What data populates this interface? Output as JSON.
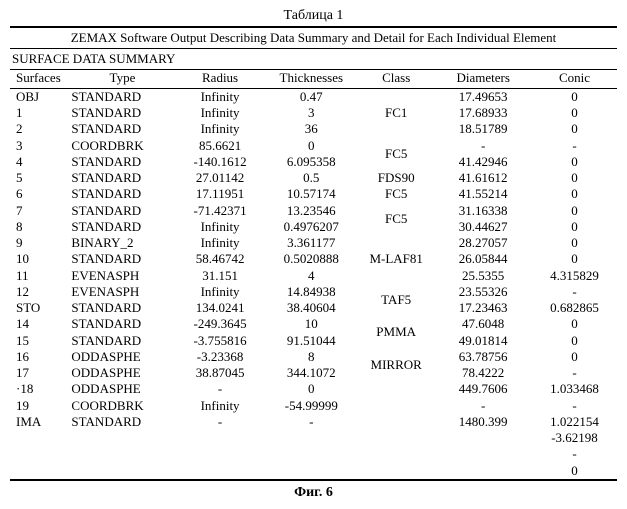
{
  "caption": "Таблица 1",
  "title": "ZEMAX Software Output Describing Data Summary and Detail for Each Individual Element",
  "section": "SURFACE DATA SUMMARY",
  "figure": "Фиг. 6",
  "columns": [
    "Surfaces",
    "Type",
    "Radius",
    "Thicknesses",
    "Class",
    "Diameters",
    "Conic"
  ],
  "rows": [
    {
      "s": "OBJ",
      "t": "STANDARD",
      "r": "Infinity",
      "th": "0.47",
      "d": "17.49653",
      "c": "0"
    },
    {
      "s": "1",
      "t": "STANDARD",
      "r": "Infinity",
      "th": "3",
      "cl": "FC1",
      "d": "17.68933",
      "c": "0"
    },
    {
      "s": "2",
      "t": "STANDARD",
      "r": "Infinity",
      "th": "36",
      "d": "18.51789",
      "c": "0"
    },
    {
      "s": "3",
      "t": "COORDBRK",
      "r": "85.6621",
      "th": "0",
      "cl": "FC5",
      "cl_span": "2",
      "d": "-",
      "c": "-"
    },
    {
      "s": "4",
      "t": "STANDARD",
      "r": "-140.1612",
      "th": "6.095358",
      "d": "41.42946",
      "c": "0"
    },
    {
      "s": "5",
      "t": "STANDARD",
      "r": "27.01142",
      "th": "0.5",
      "cl": "FDS90",
      "d": "41.61612",
      "c": "0"
    },
    {
      "s": "6",
      "t": "STANDARD",
      "r": "17.11951",
      "th": "10.57174",
      "cl": "FC5",
      "d": "41.55214",
      "c": "0"
    },
    {
      "s": "7",
      "t": "STANDARD",
      "r": "-71.42371",
      "th": "13.23546",
      "cl": "FC5",
      "cl_span": "2",
      "d": "31.16338",
      "c": "0"
    },
    {
      "s": "8",
      "t": "STANDARD",
      "r": "Infinity",
      "th": "0.4976207",
      "d": "30.44627",
      "c": "0"
    },
    {
      "s": "9",
      "t": "BINARY_2",
      "r": "Infinity",
      "th": "3.361177",
      "d": "28.27057",
      "c": "0"
    },
    {
      "s": "10",
      "t": "STANDARD",
      "r": "58.46742",
      "th": "0.5020888",
      "cl": "M-LAF81",
      "d": "26.05844",
      "c": "0"
    },
    {
      "s": "11",
      "t": "EVENASPH",
      "r": "31.151",
      "th": "4",
      "d": "25.5355",
      "c": "4.315829"
    },
    {
      "s": "12",
      "t": "EVENASPH",
      "r": "Infinity",
      "th": "14.84938",
      "cl": "TAF5",
      "cl_span": "2",
      "d": "23.55326",
      "c": "-"
    },
    {
      "s": "STO",
      "t": "STANDARD",
      "r": "134.0241",
      "th": "38.40604",
      "d": "17.23463",
      "c": "0.682865"
    },
    {
      "s": "14",
      "t": "STANDARD",
      "r": "-249.3645",
      "th": "10",
      "cl": "PMMA",
      "cl_span": "2",
      "d": "47.6048",
      "c": "0"
    },
    {
      "s": "15",
      "t": "STANDARD",
      "r": "-3.755816",
      "th": "91.51044",
      "d": "49.01814",
      "c": "0"
    },
    {
      "s": "16",
      "t": "ODDASPHE",
      "r": "-3.23368",
      "th": "8",
      "cl": "MIRROR",
      "cl_span": "2",
      "d": "63.78756",
      "c": "0"
    },
    {
      "s": "17",
      "t": "ODDASPHE",
      "r": "38.87045",
      "th": "344.1072",
      "d": "78.4222",
      "c": "-"
    },
    {
      "s": "·18",
      "t": "ODDASPHE",
      "r": "-",
      "th": "0",
      "d": "449.7606",
      "c": "1.033468"
    },
    {
      "s": "19",
      "t": "COORDBRK",
      "r": "Infinity",
      "th": "-54.99999",
      "d": "-",
      "c": "-"
    },
    {
      "s": "IMA",
      "t": "STANDARD",
      "r": "-",
      "th": "-",
      "d": "1480.399",
      "c": "1.022154"
    }
  ],
  "tail_conic": [
    "-3.62198",
    "-",
    "0"
  ]
}
